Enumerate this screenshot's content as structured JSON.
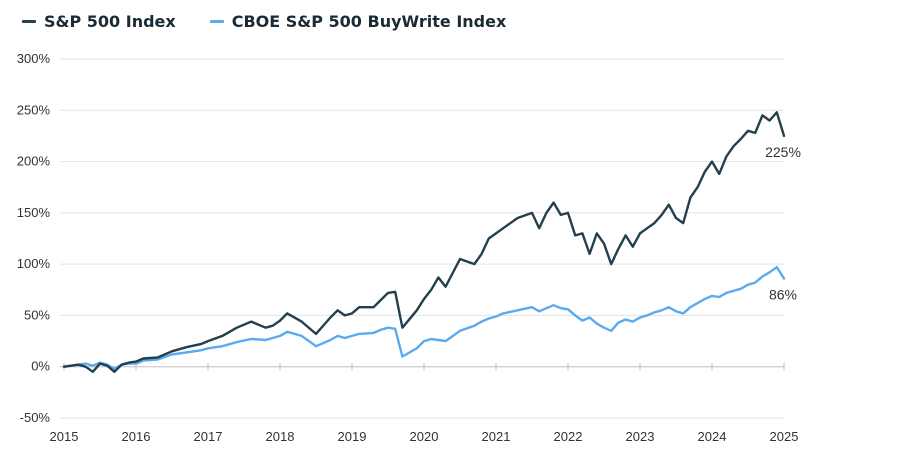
{
  "chart_data": {
    "type": "line",
    "title": "",
    "xlabel": "",
    "ylabel": "",
    "ylim": [
      -50,
      300
    ],
    "xlim": [
      2015,
      2025
    ],
    "yticks": [
      "300%",
      "250%",
      "200%",
      "150%",
      "100%",
      "50%",
      "0%",
      "-50%"
    ],
    "ytick_values": [
      300,
      250,
      200,
      150,
      100,
      50,
      0,
      -50
    ],
    "xticks": [
      "2015",
      "2016",
      "2017",
      "2018",
      "2019",
      "2020",
      "2021",
      "2022",
      "2023",
      "2024",
      "2025"
    ],
    "grid": "horizontal",
    "legend_position": "top-left",
    "series": [
      {
        "name": "S&P 500 Index",
        "color": "#243f4d",
        "end_label": "225%",
        "x": [
          2015.0,
          2015.2,
          2015.3,
          2015.4,
          2015.5,
          2015.6,
          2015.7,
          2015.8,
          2015.9,
          2016.0,
          2016.1,
          2016.3,
          2016.5,
          2016.7,
          2016.9,
          2017.0,
          2017.2,
          2017.4,
          2017.6,
          2017.8,
          2017.9,
          2018.0,
          2018.1,
          2018.3,
          2018.5,
          2018.7,
          2018.8,
          2018.9,
          2019.0,
          2019.1,
          2019.3,
          2019.4,
          2019.5,
          2019.6,
          2019.7,
          2019.9,
          2020.0,
          2020.1,
          2020.2,
          2020.3,
          2020.5,
          2020.7,
          2020.8,
          2020.9,
          2021.0,
          2021.1,
          2021.3,
          2021.5,
          2021.6,
          2021.7,
          2021.8,
          2021.9,
          2022.0,
          2022.1,
          2022.2,
          2022.3,
          2022.4,
          2022.5,
          2022.6,
          2022.7,
          2022.8,
          2022.9,
          2023.0,
          2023.1,
          2023.2,
          2023.3,
          2023.4,
          2023.5,
          2023.6,
          2023.7,
          2023.8,
          2023.9,
          2024.0,
          2024.1,
          2024.2,
          2024.3,
          2024.4,
          2024.5,
          2024.6,
          2024.7,
          2024.8,
          2024.9,
          2025.0
        ],
        "values": [
          0,
          2,
          0,
          -5,
          3,
          1,
          -5,
          2,
          4,
          5,
          8,
          9,
          15,
          19,
          22,
          25,
          30,
          38,
          44,
          38,
          40,
          45,
          52,
          44,
          32,
          48,
          55,
          50,
          52,
          58,
          58,
          65,
          72,
          73,
          38,
          55,
          66,
          75,
          87,
          78,
          105,
          100,
          110,
          125,
          130,
          135,
          145,
          150,
          135,
          150,
          160,
          148,
          150,
          128,
          130,
          110,
          130,
          120,
          100,
          115,
          128,
          117,
          130,
          135,
          140,
          148,
          158,
          145,
          140,
          165,
          175,
          190,
          200,
          188,
          205,
          215,
          222,
          230,
          228,
          245,
          240,
          248,
          225
        ]
      },
      {
        "name": "CBOE S&P 500 BuyWrite Index",
        "color": "#5aaaf0",
        "end_label": "86%",
        "x": [
          2015.0,
          2015.2,
          2015.3,
          2015.4,
          2015.5,
          2015.6,
          2015.7,
          2015.8,
          2015.9,
          2016.0,
          2016.1,
          2016.3,
          2016.5,
          2016.7,
          2016.9,
          2017.0,
          2017.2,
          2017.4,
          2017.6,
          2017.8,
          2017.9,
          2018.0,
          2018.1,
          2018.3,
          2018.5,
          2018.7,
          2018.8,
          2018.9,
          2019.0,
          2019.1,
          2019.3,
          2019.4,
          2019.5,
          2019.6,
          2019.7,
          2019.9,
          2020.0,
          2020.1,
          2020.2,
          2020.3,
          2020.5,
          2020.7,
          2020.8,
          2020.9,
          2021.0,
          2021.1,
          2021.3,
          2021.5,
          2021.6,
          2021.7,
          2021.8,
          2021.9,
          2022.0,
          2022.1,
          2022.2,
          2022.3,
          2022.4,
          2022.5,
          2022.6,
          2022.7,
          2022.8,
          2022.9,
          2023.0,
          2023.1,
          2023.2,
          2023.3,
          2023.4,
          2023.5,
          2023.6,
          2023.7,
          2023.8,
          2023.9,
          2024.0,
          2024.1,
          2024.2,
          2024.3,
          2024.4,
          2024.5,
          2024.6,
          2024.7,
          2024.8,
          2024.9,
          2025.0
        ],
        "values": [
          0,
          2,
          3,
          1,
          4,
          2,
          -2,
          2,
          3,
          3,
          6,
          7,
          12,
          14,
          16,
          18,
          20,
          24,
          27,
          26,
          28,
          30,
          34,
          30,
          20,
          26,
          30,
          28,
          30,
          32,
          33,
          36,
          38,
          37,
          10,
          18,
          25,
          27,
          26,
          25,
          35,
          40,
          44,
          47,
          49,
          52,
          55,
          58,
          54,
          57,
          60,
          57,
          56,
          50,
          45,
          48,
          42,
          38,
          35,
          43,
          46,
          44,
          48,
          50,
          53,
          55,
          58,
          54,
          52,
          58,
          62,
          66,
          69,
          68,
          72,
          74,
          76,
          80,
          82,
          88,
          92,
          97,
          86
        ]
      }
    ]
  }
}
